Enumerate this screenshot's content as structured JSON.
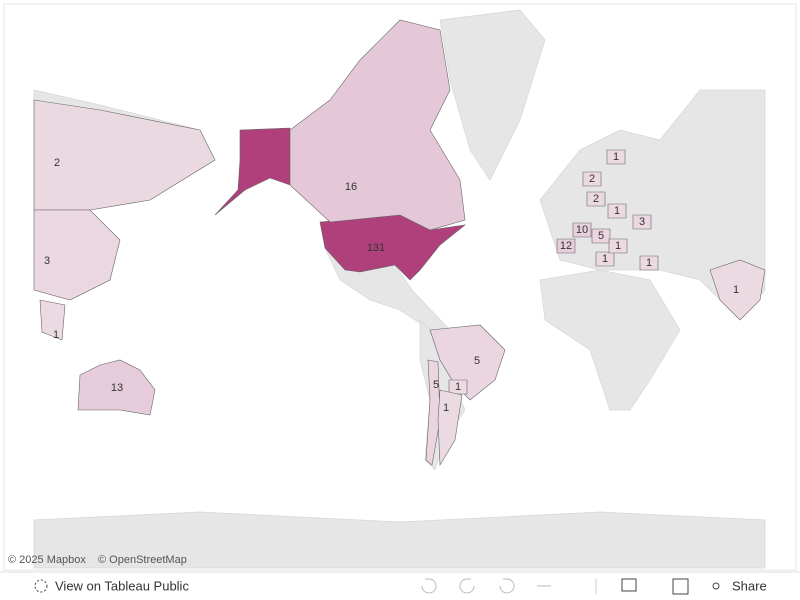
{
  "map": {
    "counts": [
      131,
      16,
      13,
      5,
      5,
      2,
      3,
      1,
      1,
      1,
      1,
      2,
      2,
      1,
      3,
      10,
      12,
      5,
      1,
      1,
      1,
      1
    ]
  },
  "attribution": {
    "mapbox": "© 2025 Mapbox",
    "osm": "© OpenStreetMap"
  },
  "toolbar": {
    "view": "View on Tableau Public",
    "share": "Share"
  }
}
